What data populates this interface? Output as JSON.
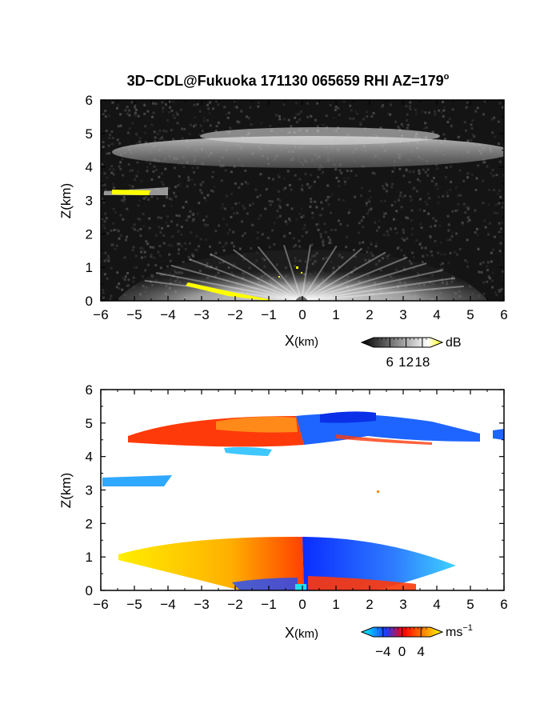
{
  "figure": {
    "title_main": "3D−CDL@Fukuoka 171130 065659 RHI AZ=179",
    "title_deg": "o"
  },
  "chart_data": [
    {
      "type": "heatmap",
      "name": "backscatter_intensity",
      "xlabel_main": "X",
      "xlabel_unit": "(km)",
      "ylabel": "Z(km)",
      "xlim": [
        -6,
        6
      ],
      "ylim": [
        0,
        6
      ],
      "xticks": [
        "−6",
        "−5",
        "−4",
        "−3",
        "−2",
        "−1",
        "0",
        "1",
        "2",
        "3",
        "4",
        "5",
        "6"
      ],
      "yticks": [
        "0",
        "1",
        "2",
        "3",
        "4",
        "5",
        "6"
      ],
      "colorbar": {
        "unit": "dB",
        "ticks": [
          6,
          12,
          18
        ],
        "range": [
          0,
          21
        ],
        "colors": [
          "#000000",
          "#ffffff",
          "#ffff00"
        ]
      },
      "features": [
        {
          "label": "cloud_layer",
          "x_range": [
            -6,
            6
          ],
          "z_range": [
            4.4,
            5.3
          ],
          "intensity_db": 10
        },
        {
          "label": "boundary_layer_aerosol",
          "x_range": [
            -5.5,
            5.5
          ],
          "z_range": [
            0,
            1.5
          ],
          "intensity_db": 14
        },
        {
          "label": "thin_layer_high_return",
          "x_range": [
            -6,
            -4
          ],
          "z_range": [
            3.1,
            3.4
          ],
          "intensity_db": 20
        },
        {
          "label": "ground_clutter_high_return",
          "x_range": [
            -3.3,
            -1
          ],
          "z_range": [
            0,
            0.5
          ],
          "intensity_db": 20
        }
      ]
    },
    {
      "type": "heatmap",
      "name": "doppler_velocity",
      "xlabel_main": "X",
      "xlabel_unit": "(km)",
      "ylabel": "Z(km)",
      "xlim": [
        -6,
        6
      ],
      "ylim": [
        0,
        6
      ],
      "xticks": [
        "−6",
        "−5",
        "−4",
        "−3",
        "−2",
        "−1",
        "0",
        "1",
        "2",
        "3",
        "4",
        "5",
        "6"
      ],
      "yticks": [
        "0",
        "1",
        "2",
        "3",
        "4",
        "5",
        "6"
      ],
      "colorbar": {
        "unit_base": "ms",
        "unit_exp": "−1",
        "ticks": [
          "−4",
          "0",
          "4"
        ],
        "range": [
          -6,
          6
        ],
        "colors": [
          "#00ffff",
          "#1e3cff",
          "#ff0000",
          "#ffff00"
        ]
      },
      "features": [
        {
          "label": "cloud_layer_west",
          "x_range": [
            -5.6,
            -0.2
          ],
          "z_range": [
            4.3,
            5.2
          ],
          "velocity_ms": 0.8
        },
        {
          "label": "cloud_layer_east",
          "x_range": [
            -0.2,
            6
          ],
          "z_range": [
            4.4,
            5.3
          ],
          "velocity_ms": -3.5
        },
        {
          "label": "thin_layer",
          "x_range": [
            -6,
            -4.1
          ],
          "z_range": [
            3.1,
            3.4
          ],
          "velocity_ms": -4.2
        },
        {
          "label": "boundary_layer_west",
          "x_range": [
            -5.6,
            0
          ],
          "z_range": [
            0,
            1.5
          ],
          "velocity_ms": 2.5
        },
        {
          "label": "boundary_layer_east",
          "x_range": [
            0,
            4.7
          ],
          "z_range": [
            0,
            1.5
          ],
          "velocity_ms": -3.5
        }
      ]
    }
  ]
}
